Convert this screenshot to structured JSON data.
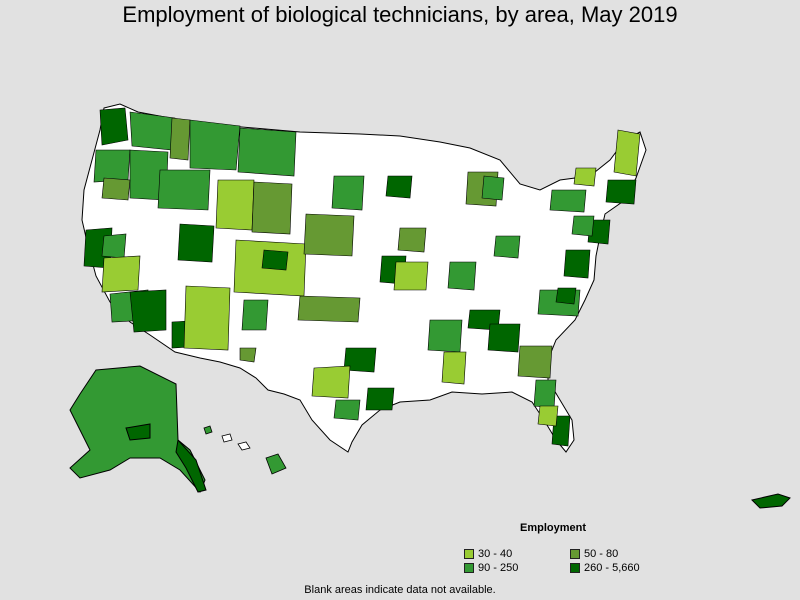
{
  "title": "Employment of biological technicians, by area, May 2019",
  "legend": {
    "title": "Employment",
    "items": [
      {
        "label": "30 - 40",
        "color": "#99cc33"
      },
      {
        "label": "50 - 80",
        "color": "#669933"
      },
      {
        "label": "90 - 250",
        "color": "#339933"
      },
      {
        "label": "260 - 5,660",
        "color": "#006600"
      }
    ]
  },
  "footnote": "Blank areas indicate data not available.",
  "colors": {
    "background": "#e1e1e1",
    "no_data": "#ffffff",
    "border": "#000000"
  }
}
